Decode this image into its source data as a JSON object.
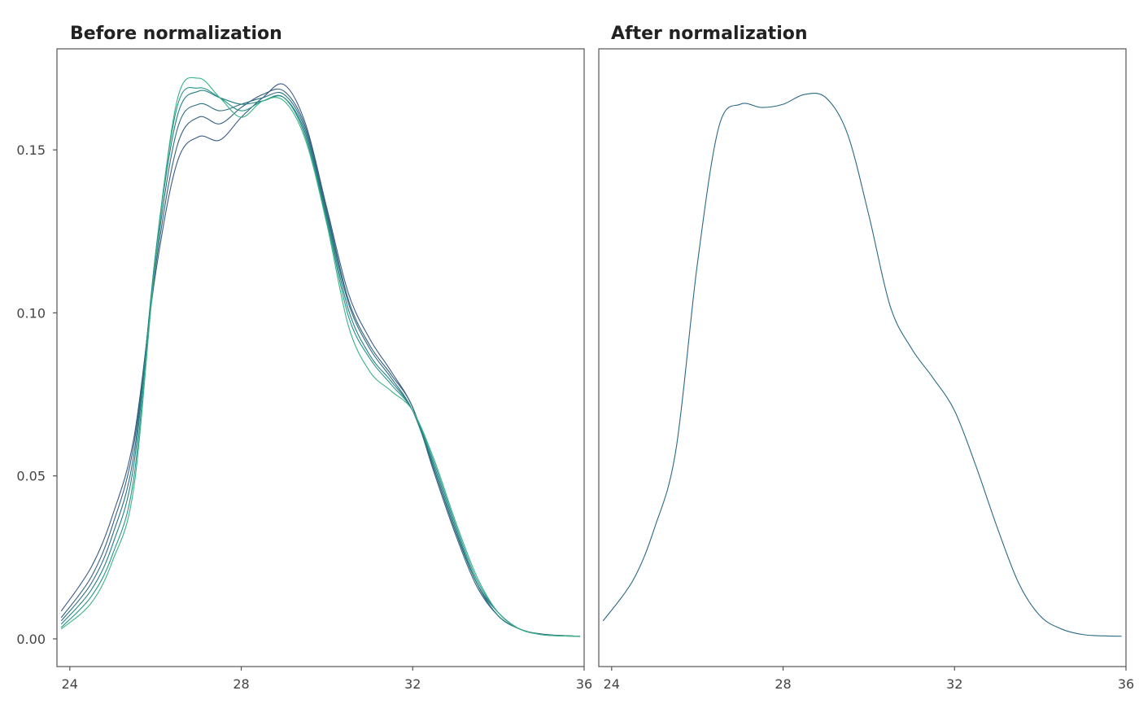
{
  "chart_data": [
    {
      "type": "line",
      "title": "Before normalization",
      "xlabel": "",
      "ylabel": "",
      "xlim": [
        23.7,
        36.0
      ],
      "ylim": [
        -0.0085,
        0.181
      ],
      "xticks": [
        24,
        28,
        32,
        36
      ],
      "yticks": [
        0.0,
        0.05,
        0.1,
        0.15
      ],
      "ytick_labels": [
        "0.00",
        "0.05",
        "0.10",
        "0.15"
      ],
      "grid": false,
      "legend": "none",
      "x": [
        23.8,
        24.5,
        25.0,
        25.5,
        26.0,
        26.5,
        27.0,
        27.5,
        28.0,
        28.5,
        29.0,
        29.5,
        30.0,
        30.5,
        31.0,
        31.5,
        32.0,
        32.5,
        33.0,
        33.5,
        34.0,
        34.5,
        35.0,
        35.5,
        35.9
      ],
      "series": [
        {
          "color": "#3b5b85",
          "values": [
            0.0085,
            0.022,
            0.038,
            0.062,
            0.112,
            0.146,
            0.154,
            0.153,
            0.16,
            0.166,
            0.17,
            0.158,
            0.132,
            0.106,
            0.092,
            0.082,
            0.071,
            0.052,
            0.033,
            0.017,
            0.008,
            0.003,
            0.0015,
            0.001,
            0.0008
          ]
        },
        {
          "color": "#36607f",
          "values": [
            0.0065,
            0.019,
            0.035,
            0.06,
            0.114,
            0.151,
            0.16,
            0.158,
            0.163,
            0.167,
            0.168,
            0.157,
            0.131,
            0.104,
            0.09,
            0.081,
            0.071,
            0.051,
            0.032,
            0.016,
            0.007,
            0.003,
            0.0014,
            0.001,
            0.0008
          ]
        },
        {
          "color": "#2c6d84",
          "values": [
            0.0055,
            0.017,
            0.032,
            0.057,
            0.116,
            0.156,
            0.164,
            0.162,
            0.164,
            0.166,
            0.167,
            0.156,
            0.13,
            0.103,
            0.089,
            0.08,
            0.07,
            0.052,
            0.033,
            0.017,
            0.007,
            0.003,
            0.0014,
            0.001,
            0.0008
          ]
        },
        {
          "color": "#237f83",
          "values": [
            0.0045,
            0.015,
            0.029,
            0.054,
            0.118,
            0.16,
            0.168,
            0.166,
            0.164,
            0.165,
            0.166,
            0.155,
            0.129,
            0.101,
            0.087,
            0.079,
            0.07,
            0.053,
            0.034,
            0.017,
            0.007,
            0.003,
            0.0013,
            0.0009,
            0.0008
          ]
        },
        {
          "color": "#24958a",
          "values": [
            0.0035,
            0.013,
            0.026,
            0.05,
            0.118,
            0.163,
            0.169,
            0.166,
            0.162,
            0.165,
            0.166,
            0.154,
            0.128,
            0.099,
            0.086,
            0.078,
            0.07,
            0.054,
            0.035,
            0.018,
            0.008,
            0.003,
            0.0013,
            0.0009,
            0.0008
          ]
        },
        {
          "color": "#39b384",
          "values": [
            0.003,
            0.011,
            0.024,
            0.047,
            0.116,
            0.165,
            0.172,
            0.166,
            0.16,
            0.165,
            0.165,
            0.153,
            0.127,
            0.096,
            0.082,
            0.076,
            0.07,
            0.055,
            0.036,
            0.019,
            0.008,
            0.003,
            0.0013,
            0.0009,
            0.0008
          ]
        }
      ]
    },
    {
      "type": "line",
      "title": "After normalization",
      "xlabel": "",
      "ylabel": "",
      "xlim": [
        23.7,
        36.0
      ],
      "ylim": [
        -0.0085,
        0.181
      ],
      "xticks": [
        24,
        28,
        32,
        36
      ],
      "yticks": [],
      "grid": false,
      "legend": "none",
      "x": [
        23.8,
        24.5,
        25.0,
        25.5,
        26.0,
        26.5,
        27.0,
        27.5,
        28.0,
        28.5,
        29.0,
        29.5,
        30.0,
        30.5,
        31.0,
        31.5,
        32.0,
        32.5,
        33.0,
        33.5,
        34.0,
        34.5,
        35.0,
        35.5,
        35.9
      ],
      "series": [
        {
          "color": "#2a6a84",
          "values": [
            0.0055,
            0.018,
            0.034,
            0.058,
            0.115,
            0.157,
            0.164,
            0.163,
            0.164,
            0.167,
            0.166,
            0.155,
            0.13,
            0.102,
            0.089,
            0.08,
            0.07,
            0.053,
            0.034,
            0.017,
            0.007,
            0.003,
            0.0013,
            0.0009,
            0.0008
          ]
        }
      ]
    }
  ]
}
